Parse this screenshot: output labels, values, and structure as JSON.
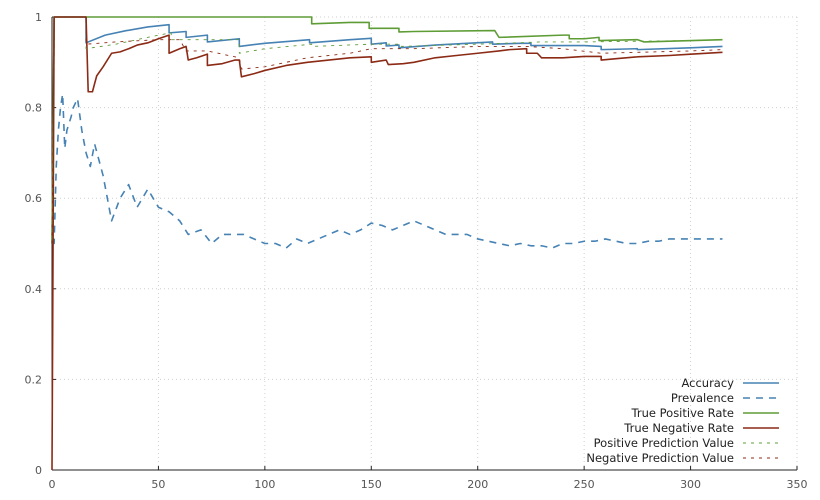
{
  "chart_data": {
    "type": "line",
    "title": "",
    "xlabel": "",
    "ylabel": "",
    "xlim": [
      0,
      350
    ],
    "ylim": [
      0,
      1
    ],
    "x_ticks": [
      0,
      50,
      100,
      150,
      200,
      250,
      300,
      350
    ],
    "y_ticks": [
      0,
      0.2,
      0.4,
      0.6,
      0.8,
      1
    ],
    "x_tick_labels": [
      "0",
      "50",
      "100",
      "150",
      "200",
      "250",
      "300",
      "350"
    ],
    "y_tick_labels": [
      "0",
      "0.2",
      "0.4",
      "0.6",
      "0.8",
      "1"
    ],
    "grid": true,
    "legend_position": "bottom-right",
    "series": [
      {
        "name": "Accuracy",
        "color": "#4682b4",
        "style": "solid",
        "points": [
          [
            0,
            0.5
          ],
          [
            1,
            1.0
          ],
          [
            16,
            1.0
          ],
          [
            16,
            0.943
          ],
          [
            25,
            0.96
          ],
          [
            35,
            0.97
          ],
          [
            45,
            0.978
          ],
          [
            55,
            0.983
          ],
          [
            55,
            0.965
          ],
          [
            63,
            0.968
          ],
          [
            63,
            0.955
          ],
          [
            73,
            0.96
          ],
          [
            73,
            0.945
          ],
          [
            88,
            0.952
          ],
          [
            88,
            0.935
          ],
          [
            100,
            0.942
          ],
          [
            121,
            0.95
          ],
          [
            121,
            0.943
          ],
          [
            140,
            0.95
          ],
          [
            150,
            0.953
          ],
          [
            150,
            0.94
          ],
          [
            157,
            0.943
          ],
          [
            157,
            0.936
          ],
          [
            163,
            0.938
          ],
          [
            163,
            0.932
          ],
          [
            180,
            0.938
          ],
          [
            207,
            0.945
          ],
          [
            207,
            0.94
          ],
          [
            220,
            0.942
          ],
          [
            225,
            0.942
          ],
          [
            225,
            0.937
          ],
          [
            250,
            0.937
          ],
          [
            258,
            0.935
          ],
          [
            258,
            0.928
          ],
          [
            275,
            0.93
          ],
          [
            275,
            0.928
          ],
          [
            300,
            0.932
          ],
          [
            315,
            0.935
          ]
        ]
      },
      {
        "name": "Prevalence",
        "color": "#4682b4",
        "style": "dashed",
        "points": [
          [
            0,
            0.5
          ],
          [
            1,
            0.5
          ],
          [
            2,
            0.67
          ],
          [
            3,
            0.75
          ],
          [
            4,
            0.8
          ],
          [
            5,
            0.83
          ],
          [
            6,
            0.71
          ],
          [
            7,
            0.75
          ],
          [
            9,
            0.78
          ],
          [
            10,
            0.8
          ],
          [
            12,
            0.82
          ],
          [
            14,
            0.75
          ],
          [
            16,
            0.7
          ],
          [
            18,
            0.67
          ],
          [
            20,
            0.72
          ],
          [
            24,
            0.65
          ],
          [
            28,
            0.55
          ],
          [
            32,
            0.6
          ],
          [
            36,
            0.63
          ],
          [
            40,
            0.58
          ],
          [
            45,
            0.62
          ],
          [
            50,
            0.58
          ],
          [
            55,
            0.57
          ],
          [
            60,
            0.55
          ],
          [
            64,
            0.52
          ],
          [
            70,
            0.53
          ],
          [
            75,
            0.5
          ],
          [
            80,
            0.52
          ],
          [
            85,
            0.52
          ],
          [
            90,
            0.52
          ],
          [
            95,
            0.51
          ],
          [
            100,
            0.5
          ],
          [
            105,
            0.5
          ],
          [
            110,
            0.49
          ],
          [
            115,
            0.51
          ],
          [
            120,
            0.5
          ],
          [
            125,
            0.51
          ],
          [
            130,
            0.52
          ],
          [
            135,
            0.53
          ],
          [
            140,
            0.52
          ],
          [
            145,
            0.53
          ],
          [
            150,
            0.545
          ],
          [
            155,
            0.54
          ],
          [
            160,
            0.53
          ],
          [
            165,
            0.54
          ],
          [
            170,
            0.55
          ],
          [
            175,
            0.54
          ],
          [
            180,
            0.53
          ],
          [
            185,
            0.52
          ],
          [
            190,
            0.52
          ],
          [
            195,
            0.52
          ],
          [
            200,
            0.51
          ],
          [
            205,
            0.505
          ],
          [
            210,
            0.5
          ],
          [
            215,
            0.495
          ],
          [
            220,
            0.5
          ],
          [
            225,
            0.495
          ],
          [
            230,
            0.495
          ],
          [
            235,
            0.49
          ],
          [
            240,
            0.5
          ],
          [
            245,
            0.5
          ],
          [
            250,
            0.505
          ],
          [
            255,
            0.505
          ],
          [
            260,
            0.51
          ],
          [
            265,
            0.505
          ],
          [
            270,
            0.5
          ],
          [
            275,
            0.5
          ],
          [
            280,
            0.505
          ],
          [
            285,
            0.505
          ],
          [
            290,
            0.51
          ],
          [
            295,
            0.51
          ],
          [
            300,
            0.51
          ],
          [
            305,
            0.51
          ],
          [
            310,
            0.51
          ],
          [
            315,
            0.51
          ]
        ]
      },
      {
        "name": "True Positive Rate",
        "color": "#5e9c36",
        "style": "solid",
        "points": [
          [
            0,
            0.5
          ],
          [
            1,
            1.0
          ],
          [
            122,
            1.0
          ],
          [
            122,
            0.985
          ],
          [
            140,
            0.988
          ],
          [
            149,
            0.988
          ],
          [
            149,
            0.975
          ],
          [
            163,
            0.975
          ],
          [
            163,
            0.967
          ],
          [
            170,
            0.968
          ],
          [
            208,
            0.97
          ],
          [
            210,
            0.955
          ],
          [
            240,
            0.96
          ],
          [
            243,
            0.96
          ],
          [
            243,
            0.952
          ],
          [
            250,
            0.952
          ],
          [
            257,
            0.955
          ],
          [
            257,
            0.948
          ],
          [
            275,
            0.95
          ],
          [
            278,
            0.945
          ],
          [
            315,
            0.95
          ]
        ]
      },
      {
        "name": "True Negative Rate",
        "color": "#8b2a15",
        "style": "solid",
        "points": [
          [
            0,
            0
          ],
          [
            1,
            1.0
          ],
          [
            16,
            1.0
          ],
          [
            17,
            0.835
          ],
          [
            19,
            0.835
          ],
          [
            21,
            0.87
          ],
          [
            24,
            0.89
          ],
          [
            28,
            0.92
          ],
          [
            32,
            0.923
          ],
          [
            36,
            0.93
          ],
          [
            40,
            0.938
          ],
          [
            45,
            0.943
          ],
          [
            50,
            0.952
          ],
          [
            55,
            0.96
          ],
          [
            55,
            0.92
          ],
          [
            60,
            0.93
          ],
          [
            63,
            0.935
          ],
          [
            64,
            0.905
          ],
          [
            68,
            0.91
          ],
          [
            73,
            0.918
          ],
          [
            73,
            0.893
          ],
          [
            80,
            0.897
          ],
          [
            86,
            0.905
          ],
          [
            88,
            0.905
          ],
          [
            89,
            0.868
          ],
          [
            95,
            0.875
          ],
          [
            100,
            0.882
          ],
          [
            110,
            0.893
          ],
          [
            120,
            0.9
          ],
          [
            130,
            0.905
          ],
          [
            140,
            0.91
          ],
          [
            150,
            0.912
          ],
          [
            150,
            0.9
          ],
          [
            157,
            0.905
          ],
          [
            158,
            0.895
          ],
          [
            165,
            0.897
          ],
          [
            170,
            0.9
          ],
          [
            180,
            0.91
          ],
          [
            190,
            0.915
          ],
          [
            200,
            0.92
          ],
          [
            210,
            0.925
          ],
          [
            215,
            0.928
          ],
          [
            223,
            0.93
          ],
          [
            223,
            0.92
          ],
          [
            228,
            0.92
          ],
          [
            230,
            0.91
          ],
          [
            240,
            0.91
          ],
          [
            250,
            0.913
          ],
          [
            258,
            0.913
          ],
          [
            258,
            0.905
          ],
          [
            265,
            0.908
          ],
          [
            275,
            0.912
          ],
          [
            290,
            0.915
          ],
          [
            300,
            0.918
          ],
          [
            315,
            0.922
          ]
        ]
      },
      {
        "name": "Positive Prediction Value",
        "color": "#5e9c36",
        "style": "dashed",
        "points": [
          [
            0,
            0.5
          ],
          [
            1,
            1.0
          ],
          [
            16,
            1.0
          ],
          [
            16,
            0.93
          ],
          [
            30,
            0.94
          ],
          [
            50,
            0.96
          ],
          [
            56,
            0.965
          ],
          [
            56,
            0.95
          ],
          [
            70,
            0.95
          ],
          [
            88,
            0.95
          ],
          [
            88,
            0.92
          ],
          [
            100,
            0.93
          ],
          [
            122,
            0.94
          ],
          [
            122,
            0.935
          ],
          [
            150,
            0.94
          ],
          [
            163,
            0.94
          ],
          [
            163,
            0.935
          ],
          [
            200,
            0.94
          ],
          [
            230,
            0.945
          ],
          [
            250,
            0.945
          ],
          [
            300,
            0.948
          ],
          [
            315,
            0.95
          ]
        ]
      },
      {
        "name": "Negative Prediction Value",
        "color": "#8b2a15",
        "style": "dashed",
        "points": [
          [
            0,
            0.5
          ],
          [
            1,
            1.0
          ],
          [
            16,
            1.0
          ],
          [
            16,
            0.94
          ],
          [
            30,
            0.945
          ],
          [
            50,
            0.95
          ],
          [
            60,
            0.95
          ],
          [
            63,
            0.925
          ],
          [
            73,
            0.925
          ],
          [
            88,
            0.91
          ],
          [
            89,
            0.885
          ],
          [
            100,
            0.89
          ],
          [
            120,
            0.91
          ],
          [
            140,
            0.92
          ],
          [
            150,
            0.93
          ],
          [
            170,
            0.93
          ],
          [
            200,
            0.935
          ],
          [
            223,
            0.935
          ],
          [
            240,
            0.93
          ],
          [
            258,
            0.92
          ],
          [
            300,
            0.925
          ],
          [
            315,
            0.928
          ]
        ]
      }
    ]
  }
}
